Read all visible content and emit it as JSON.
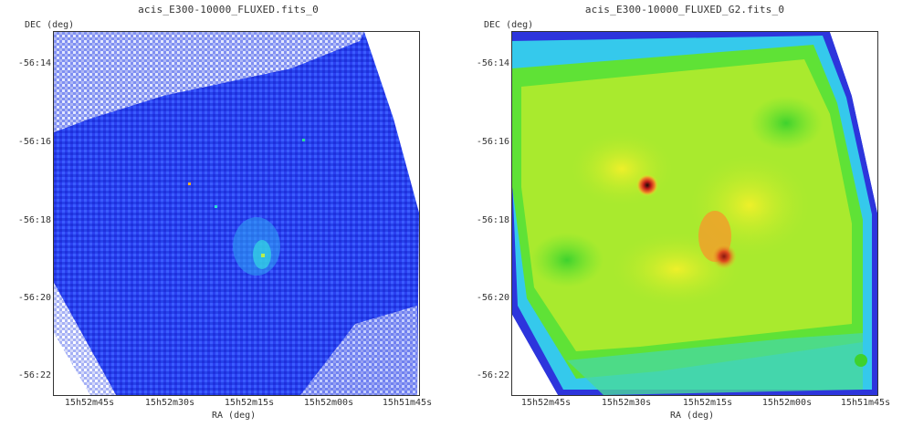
{
  "panels": [
    {
      "title": "acis_E300-10000_FLUXED.fits_0",
      "ylabel": "DEC (deg)",
      "xlabel": "RA (deg)",
      "yticks": [
        "-56:14",
        "-56:16",
        "-56:18",
        "-56:20",
        "-56:22"
      ],
      "xticks": [
        "15h52m45s",
        "15h52m30s",
        "15h52m15s",
        "15h52m00s",
        "15h51m45s"
      ],
      "colormap": "blue-to-green (sparse counts)",
      "colors": {
        "low": "#1b32e6",
        "mid": "#3a66ff",
        "high": "#19e0c8",
        "edge": "#c9cff7"
      }
    },
    {
      "title": "acis_E300-10000_FLUXED_G2.fits_0",
      "ylabel": "DEC (deg)",
      "xlabel": "RA (deg)",
      "yticks": [
        "-56:14",
        "-56:16",
        "-56:18",
        "-56:20",
        "-56:22"
      ],
      "xticks": [
        "15h52m45s",
        "15h52m30s",
        "15h52m15s",
        "15h52m00s",
        "15h51m45s"
      ],
      "colormap": "smoothed (blue-cyan-green-yellow-red)",
      "colors": {
        "edge": "#2a2adc",
        "cyan": "#2fd7e6",
        "green": "#55e632",
        "yellow": "#e8ef2a",
        "orange": "#f09a2a",
        "red": "#d9281e",
        "core": "#2b0f0a"
      }
    }
  ]
}
